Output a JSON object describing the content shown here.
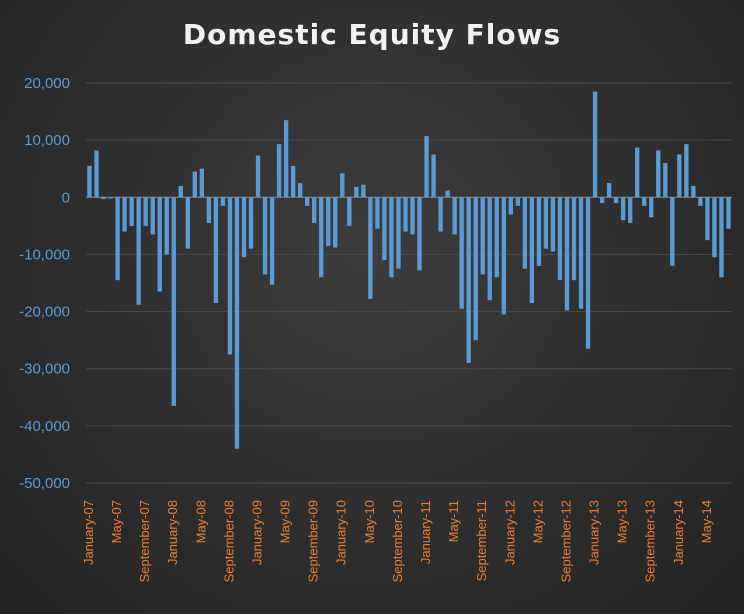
{
  "chart_data": {
    "type": "bar",
    "title": "Domestic Equity Flows",
    "xlabel": "",
    "ylabel": "",
    "ylim": [
      -50000,
      20000
    ],
    "yticks": [
      "20,000",
      "10,000",
      "0",
      "-10,000",
      "-20,000",
      "-30,000",
      "-40,000",
      "-50,000"
    ],
    "ytick_values": [
      20000,
      10000,
      0,
      -10000,
      -20000,
      -30000,
      -40000,
      -50000
    ],
    "grid": true,
    "legend": "none",
    "colors": {
      "bar": "#5b9bd5",
      "ytick": "#5b9bd5",
      "xtick": "#ed7d31",
      "title": "#f2f2f2"
    },
    "xtick_labels": [
      {
        "index": 0,
        "label": "January-07"
      },
      {
        "index": 4,
        "label": "May-07"
      },
      {
        "index": 8,
        "label": "September-07"
      },
      {
        "index": 12,
        "label": "January-08"
      },
      {
        "index": 16,
        "label": "May-08"
      },
      {
        "index": 20,
        "label": "September-08"
      },
      {
        "index": 24,
        "label": "January-09"
      },
      {
        "index": 28,
        "label": "May-09"
      },
      {
        "index": 32,
        "label": "September-09"
      },
      {
        "index": 36,
        "label": "January-10"
      },
      {
        "index": 40,
        "label": "May-10"
      },
      {
        "index": 44,
        "label": "September-10"
      },
      {
        "index": 48,
        "label": "January-11"
      },
      {
        "index": 52,
        "label": "May-11"
      },
      {
        "index": 56,
        "label": "September-11"
      },
      {
        "index": 60,
        "label": "January-12"
      },
      {
        "index": 64,
        "label": "May-12"
      },
      {
        "index": 68,
        "label": "September-12"
      },
      {
        "index": 72,
        "label": "January-13"
      },
      {
        "index": 76,
        "label": "May-13"
      },
      {
        "index": 80,
        "label": "September-13"
      },
      {
        "index": 84,
        "label": "January-14"
      },
      {
        "index": 88,
        "label": "May-14"
      }
    ],
    "series": [
      {
        "values": [
          5500,
          8200,
          -300,
          -200,
          -14500,
          -6000,
          -5000,
          -18800,
          -5000,
          -6500,
          -16500,
          -10000,
          -36500,
          2000,
          -9000,
          4500,
          5000,
          -4500,
          -18500,
          -1500,
          -27500,
          -44000,
          -10500,
          -9000,
          7300,
          -13500,
          -15300,
          9300,
          13500,
          5500,
          2500,
          -1500,
          -4500,
          -14000,
          -8500,
          -8800,
          4200,
          -5000,
          1800,
          2200,
          -17800,
          -5500,
          -11000,
          -14000,
          -12500,
          -6000,
          -6500,
          -12800,
          10700,
          7500,
          -6000,
          1200,
          -6500,
          -19500,
          -29000,
          -25000,
          -13500,
          -18000,
          -14000,
          -20500,
          -3000,
          -1500,
          -12500,
          -18500,
          -12000,
          -9000,
          -9500,
          -14500,
          -19800,
          -14500,
          -19500,
          -26500,
          18500,
          -1000,
          2500,
          -1000,
          -4000,
          -4500,
          8700,
          -1500,
          -3500,
          8200,
          6000,
          -12000,
          7500,
          9300,
          2000,
          -1500,
          -7500,
          -10500,
          -14000,
          -5500
        ]
      }
    ]
  }
}
